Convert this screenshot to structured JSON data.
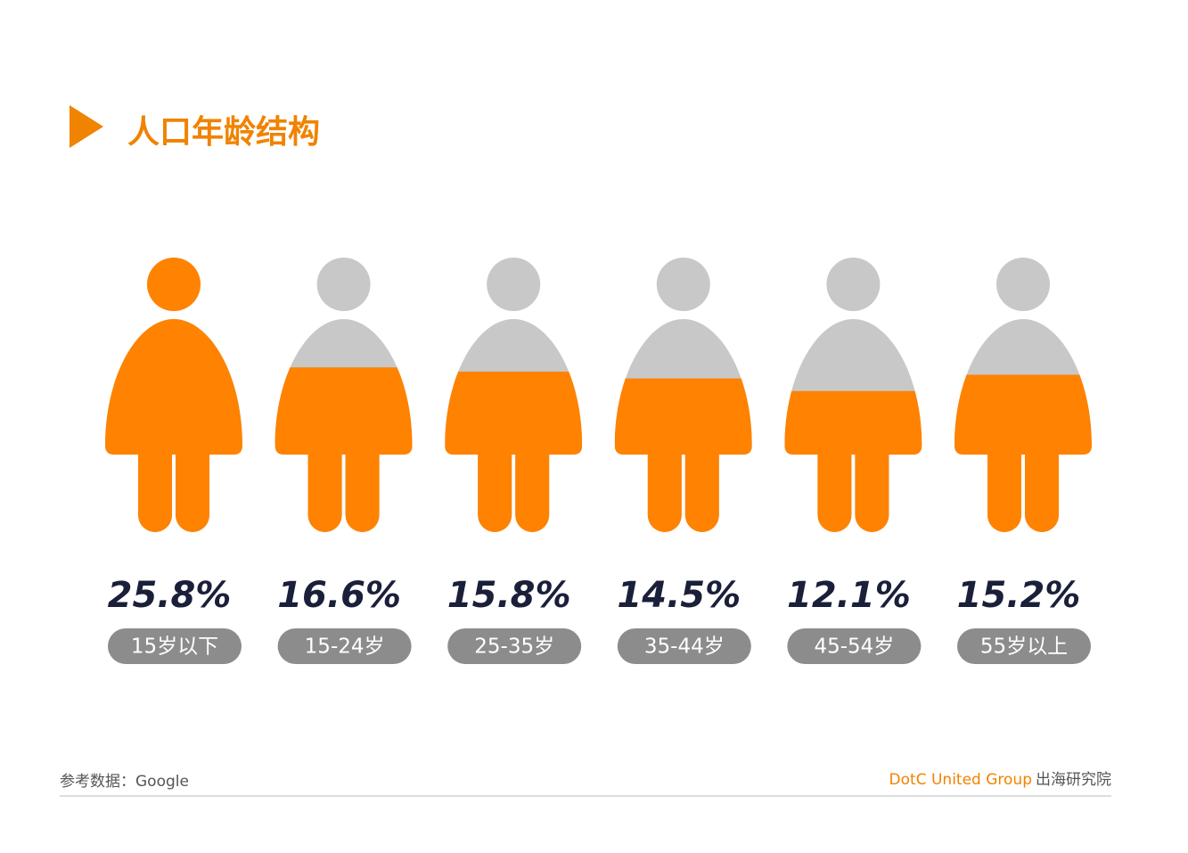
{
  "chart_data": {
    "type": "pictogram",
    "title": "人口年龄结构",
    "categories": [
      "15岁以下",
      "15-24岁",
      "25-35岁",
      "35-44岁",
      "45-54岁",
      "55岁以上"
    ],
    "values": [
      25.8,
      16.6,
      15.8,
      14.5,
      12.1,
      15.2
    ],
    "value_labels": [
      "25.8%",
      "16.6%",
      "15.8%",
      "14.5%",
      "12.1%",
      "15.2%"
    ],
    "color": "#ff8200",
    "empty_color": "#c8c8c8",
    "source": "参考数据：Google",
    "brand": "DotC United Group",
    "brand_suffix": "出海研究院"
  }
}
